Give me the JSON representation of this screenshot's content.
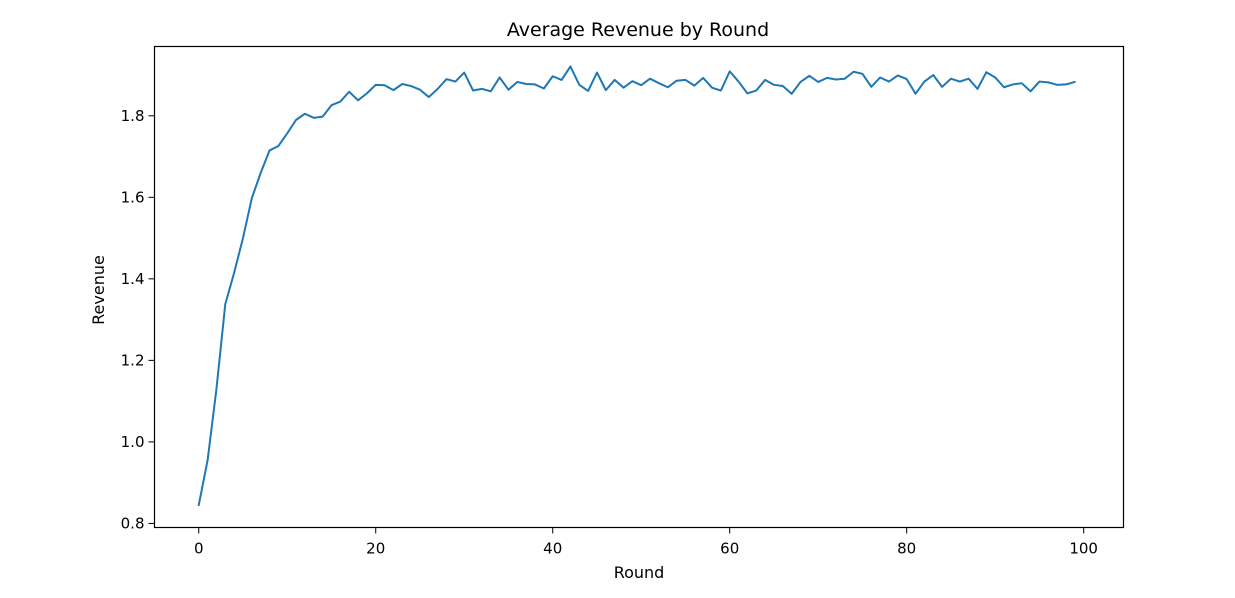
{
  "chart_data": {
    "type": "line",
    "title": "Average Revenue by Round",
    "xlabel": "Round",
    "ylabel": "Revenue",
    "xlim": [
      -5,
      104.5
    ],
    "ylim": [
      0.79,
      1.97
    ],
    "xticks": [
      0,
      20,
      40,
      60,
      80,
      100
    ],
    "yticks": [
      0.8,
      1.0,
      1.2,
      1.4,
      1.6,
      1.8
    ],
    "xtick_labels": [
      "0",
      "20",
      "40",
      "60",
      "80",
      "100"
    ],
    "ytick_labels": [
      "0.8",
      "1.0",
      "1.2",
      "1.4",
      "1.6",
      "1.8"
    ],
    "grid": false,
    "legend": "none",
    "series": [
      {
        "color": "#1f77b4",
        "x": [
          0,
          1,
          2,
          3,
          4,
          5,
          6,
          7,
          8,
          9,
          10,
          11,
          12,
          13,
          14,
          15,
          16,
          17,
          18,
          19,
          20,
          21,
          22,
          23,
          24,
          25,
          26,
          27,
          28,
          29,
          30,
          31,
          32,
          33,
          34,
          35,
          36,
          37,
          38,
          39,
          40,
          41,
          42,
          43,
          44,
          45,
          46,
          47,
          48,
          49,
          50,
          51,
          52,
          53,
          54,
          55,
          56,
          57,
          58,
          59,
          60,
          61,
          62,
          63,
          64,
          65,
          66,
          67,
          68,
          69,
          70,
          71,
          72,
          73,
          74,
          75,
          76,
          77,
          78,
          79,
          80,
          81,
          82,
          83,
          84,
          85,
          86,
          87,
          88,
          89,
          90,
          91,
          92,
          93,
          94,
          95,
          96,
          97,
          98,
          99
        ],
        "values": [
          0.845,
          0.955,
          1.13,
          1.338,
          1.415,
          1.5,
          1.598,
          1.66,
          1.715,
          1.726,
          1.757,
          1.79,
          1.805,
          1.795,
          1.798,
          1.826,
          1.835,
          1.859,
          1.838,
          1.855,
          1.876,
          1.875,
          1.863,
          1.878,
          1.873,
          1.864,
          1.846,
          1.866,
          1.89,
          1.884,
          1.906,
          1.862,
          1.866,
          1.86,
          1.894,
          1.864,
          1.883,
          1.878,
          1.877,
          1.867,
          1.897,
          1.888,
          1.921,
          1.876,
          1.861,
          1.906,
          1.863,
          1.888,
          1.869,
          1.885,
          1.875,
          1.891,
          1.88,
          1.87,
          1.886,
          1.888,
          1.874,
          1.893,
          1.869,
          1.862,
          1.909,
          1.884,
          1.855,
          1.862,
          1.888,
          1.876,
          1.873,
          1.854,
          1.883,
          1.898,
          1.883,
          1.893,
          1.889,
          1.891,
          1.908,
          1.903,
          1.871,
          1.894,
          1.884,
          1.899,
          1.89,
          1.854,
          1.884,
          1.9,
          1.871,
          1.891,
          1.884,
          1.891,
          1.866,
          1.907,
          1.894,
          1.87,
          1.877,
          1.88,
          1.86,
          1.884,
          1.882,
          1.876,
          1.877,
          1.883
        ]
      }
    ]
  }
}
